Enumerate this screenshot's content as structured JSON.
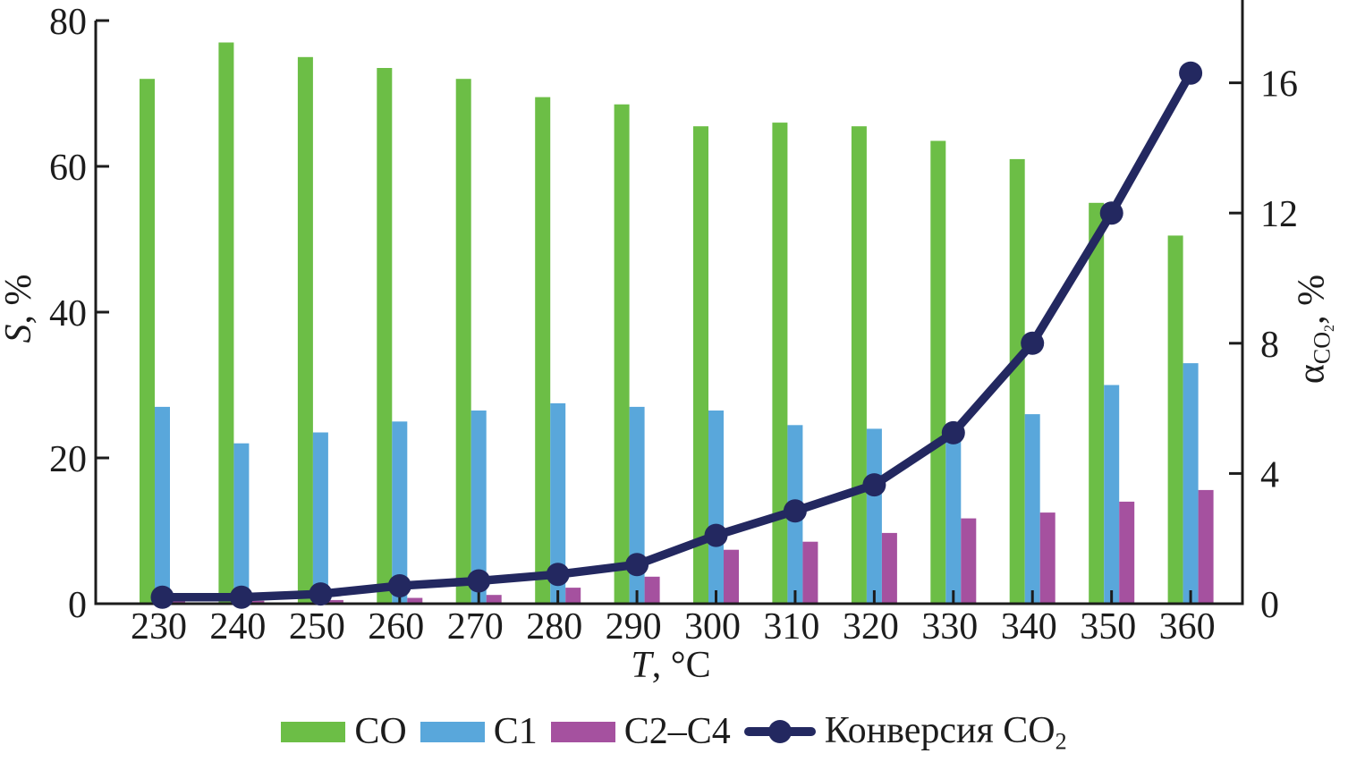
{
  "figure": {
    "background": "#ffffff"
  },
  "axes": {
    "x": {
      "label_italic": "T",
      "label_rest": ", °C",
      "tick_labels": [
        "230",
        "240",
        "250",
        "260",
        "270",
        "280",
        "290",
        "300",
        "310",
        "320",
        "330",
        "340",
        "350",
        "360"
      ]
    },
    "left": {
      "label_italic": "S",
      "label_rest": ", %",
      "tick_labels": [
        "0",
        "20",
        "40",
        "60",
        "80"
      ]
    },
    "right": {
      "label_alpha": "α",
      "label_sub_main": "CO",
      "label_sub_sub": "2",
      "label_rest": ", %",
      "tick_labels": [
        "0",
        "4",
        "8",
        "12",
        "16"
      ]
    }
  },
  "legend": {
    "items": [
      {
        "label": "CO",
        "color": "#6cbe46",
        "symbol": "swatch"
      },
      {
        "label": "C1",
        "color": "#59a7db",
        "symbol": "swatch"
      },
      {
        "label": "C2–C4",
        "color": "#a5519f",
        "symbol": "swatch"
      },
      {
        "label_main": "Конверсия CO",
        "label_sub": "2",
        "color": "#232860",
        "symbol": "line-marker"
      }
    ]
  },
  "colors": {
    "co_bar": "#6cbe46",
    "c1_bar": "#59a7db",
    "c2c4_bar": "#a5519f",
    "conversion_line": "#232860",
    "axis": "#1c1c1c"
  },
  "chart_data": {
    "type": "bar",
    "categories": [
      230,
      240,
      250,
      260,
      270,
      280,
      290,
      300,
      310,
      320,
      330,
      340,
      350,
      360
    ],
    "series": [
      {
        "name": "CO",
        "type": "bar",
        "axis": "left",
        "color": "#6cbe46",
        "values": [
          72,
          77,
          75,
          73.5,
          72,
          69.5,
          68.5,
          65.5,
          66,
          65.5,
          63.5,
          61,
          55,
          50.5
        ]
      },
      {
        "name": "C1",
        "type": "bar",
        "axis": "left",
        "color": "#59a7db",
        "values": [
          27,
          22,
          23.5,
          25,
          26.5,
          27.5,
          27,
          26.5,
          24.5,
          24,
          23.5,
          26,
          30,
          33
        ]
      },
      {
        "name": "C2–C4",
        "type": "bar",
        "axis": "left",
        "color": "#a5519f",
        "values": [
          0.6,
          0.4,
          0.5,
          0.8,
          1.2,
          2.2,
          3.7,
          7.4,
          8.5,
          9.7,
          11.7,
          12.5,
          14,
          15.6
        ]
      },
      {
        "name": "Конверсия CO2",
        "type": "line",
        "axis": "right",
        "color": "#232860",
        "values": [
          0.2,
          0.2,
          0.3,
          0.55,
          0.7,
          0.9,
          1.2,
          2.1,
          2.85,
          3.65,
          5.25,
          8.0,
          12.0,
          16.3
        ]
      }
    ],
    "xlabel": "T, °C",
    "ylabel_left": "S, %",
    "ylabel_right": "αCO2, %",
    "ylim_left": [
      0,
      80
    ],
    "ylim_right": [
      0,
      18.5
    ],
    "yticks_left": [
      0,
      20,
      40,
      60,
      80
    ],
    "yticks_right": [
      0,
      4,
      8,
      12,
      16
    ],
    "grid": false,
    "legend_position": "bottom"
  }
}
